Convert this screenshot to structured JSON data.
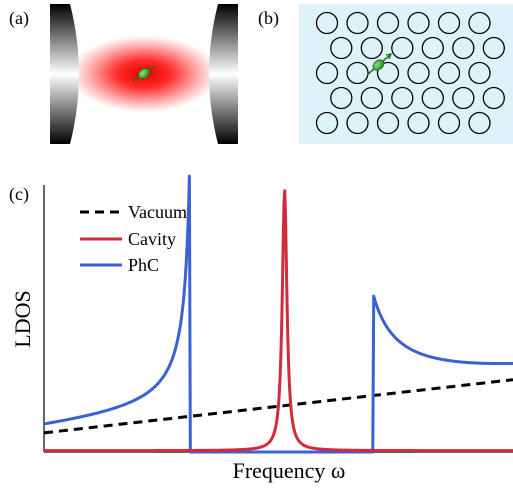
{
  "panels": {
    "a": "(a)",
    "b": "(b)",
    "c": "(c)"
  },
  "lattice": {
    "rows": [
      6,
      6,
      6,
      6,
      6
    ],
    "stagger": [
      false,
      true,
      false,
      true,
      false
    ],
    "background": "#ddf3f9"
  },
  "chart_data": {
    "type": "line",
    "xlabel": "Frequency ω",
    "ylabel": "LDOS",
    "xlim": [
      0,
      1
    ],
    "ylim": [
      0,
      1
    ],
    "legend": [
      {
        "name": "Vacuum",
        "color": "#000000",
        "style": "dashed"
      },
      {
        "name": "Cavity",
        "color": "#d42a3c",
        "style": "solid"
      },
      {
        "name": "PhC",
        "color": "#3a62d4",
        "style": "solid"
      }
    ],
    "series": [
      {
        "name": "Vacuum",
        "x": [
          0,
          1
        ],
        "y": [
          0.073,
          0.276
        ]
      },
      {
        "name": "Cavity",
        "peak_x": 0.513,
        "peak_y": 1.0,
        "halfwidth": 0.006
      },
      {
        "name": "PhC",
        "gap": [
          0.31,
          0.703
        ]
      }
    ],
    "colors": {
      "vacuum": "#000000",
      "cavity": "#d42a3c",
      "phc": "#3a62d4"
    }
  }
}
